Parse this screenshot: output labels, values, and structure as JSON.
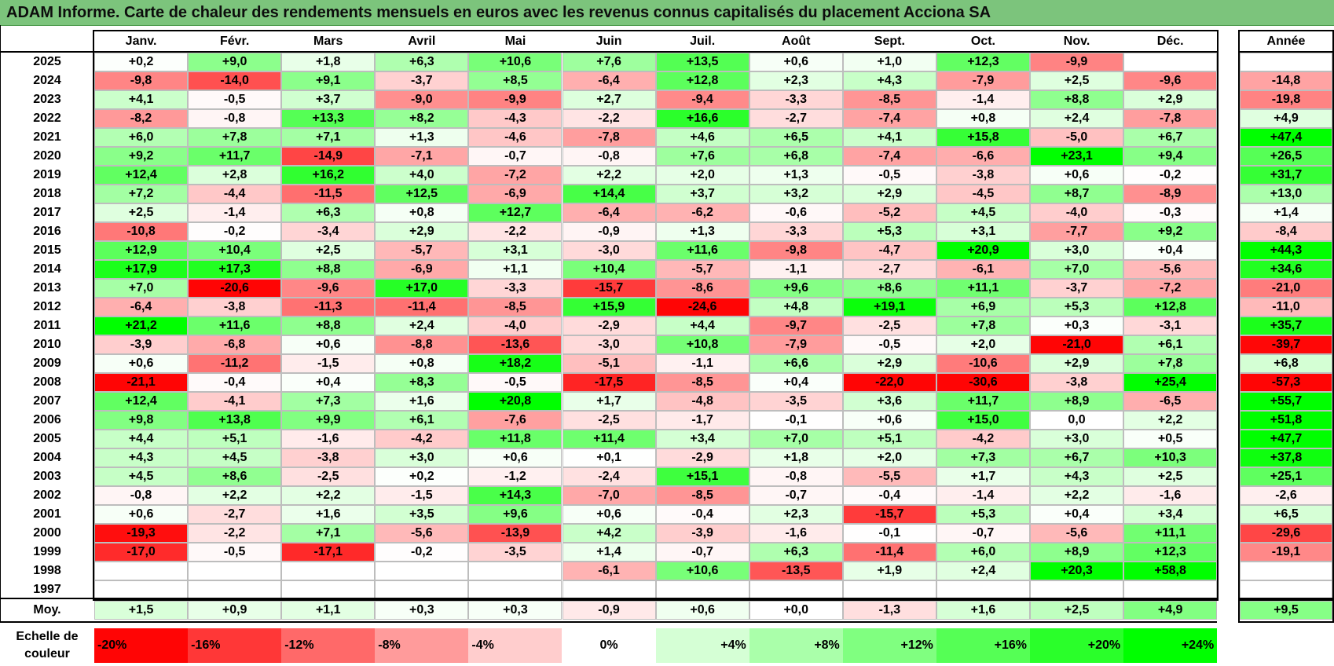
{
  "title": "ADAM Informe. Carte de chaleur des rendements mensuels en euros avec les revenus connus capitalisés du placement Acciona SA",
  "chart_data": {
    "type": "heatmap",
    "title": "ADAM Informe. Carte de chaleur des rendements mensuels en euros avec les revenus connus capitalisés du placement Acciona SA",
    "columns": [
      "Janv.",
      "Févr.",
      "Mars",
      "Avril",
      "Mai",
      "Juin",
      "Juil.",
      "Août",
      "Sept.",
      "Oct.",
      "Nov.",
      "Déc."
    ],
    "year_column_label": "Année",
    "rows": [
      {
        "year": "2025",
        "values": [
          "+0,2",
          "+9,0",
          "+1,8",
          "+6,3",
          "+10,6",
          "+7,6",
          "+13,5",
          "+0,6",
          "+1,0",
          "+12,3",
          "-9,9",
          ""
        ],
        "annual": ""
      },
      {
        "year": "2024",
        "values": [
          "-9,8",
          "-14,0",
          "+9,1",
          "-3,7",
          "+8,5",
          "-6,4",
          "+12,8",
          "+2,3",
          "+4,3",
          "-7,9",
          "+2,5",
          "-9,6"
        ],
        "annual": "-14,8"
      },
      {
        "year": "2023",
        "values": [
          "+4,1",
          "-0,5",
          "+3,7",
          "-9,0",
          "-9,9",
          "+2,7",
          "-9,4",
          "-3,3",
          "-8,5",
          "-1,4",
          "+8,8",
          "+2,9"
        ],
        "annual": "-19,8"
      },
      {
        "year": "2022",
        "values": [
          "-8,2",
          "-0,8",
          "+13,3",
          "+8,2",
          "-4,3",
          "-2,2",
          "+16,6",
          "-2,7",
          "-7,4",
          "+0,8",
          "+2,4",
          "-7,8"
        ],
        "annual": "+4,9"
      },
      {
        "year": "2021",
        "values": [
          "+6,0",
          "+7,8",
          "+7,1",
          "+1,3",
          "-4,6",
          "-7,8",
          "+4,6",
          "+6,5",
          "+4,1",
          "+15,8",
          "-5,0",
          "+6,7"
        ],
        "annual": "+47,4"
      },
      {
        "year": "2020",
        "values": [
          "+9,2",
          "+11,7",
          "-14,9",
          "-7,1",
          "-0,7",
          "-0,8",
          "+7,6",
          "+6,8",
          "-7,4",
          "-6,6",
          "+23,1",
          "+9,4"
        ],
        "annual": "+26,5"
      },
      {
        "year": "2019",
        "values": [
          "+12,4",
          "+2,8",
          "+16,2",
          "+4,0",
          "-7,2",
          "+2,2",
          "+2,0",
          "+1,3",
          "-0,5",
          "-3,8",
          "+0,6",
          "-0,2"
        ],
        "annual": "+31,7"
      },
      {
        "year": "2018",
        "values": [
          "+7,2",
          "-4,4",
          "-11,5",
          "+12,5",
          "-6,9",
          "+14,4",
          "+3,7",
          "+3,2",
          "+2,9",
          "-4,5",
          "+8,7",
          "-8,9"
        ],
        "annual": "+13,0"
      },
      {
        "year": "2017",
        "values": [
          "+2,5",
          "-1,4",
          "+6,3",
          "+0,8",
          "+12,7",
          "-6,4",
          "-6,2",
          "-0,6",
          "-5,2",
          "+4,5",
          "-4,0",
          "-0,3"
        ],
        "annual": "+1,4"
      },
      {
        "year": "2016",
        "values": [
          "-10,8",
          "-0,2",
          "-3,4",
          "+2,9",
          "-2,2",
          "-0,9",
          "+1,3",
          "-3,3",
          "+5,3",
          "+3,1",
          "-7,7",
          "+9,2"
        ],
        "annual": "-8,4"
      },
      {
        "year": "2015",
        "values": [
          "+12,9",
          "+10,4",
          "+2,5",
          "-5,7",
          "+3,1",
          "-3,0",
          "+11,6",
          "-9,8",
          "-4,7",
          "+20,9",
          "+3,0",
          "+0,4"
        ],
        "annual": "+44,3"
      },
      {
        "year": "2014",
        "values": [
          "+17,9",
          "+17,3",
          "+8,8",
          "-6,9",
          "+1,1",
          "+10,4",
          "-5,7",
          "-1,1",
          "-2,7",
          "-6,1",
          "+7,0",
          "-5,6"
        ],
        "annual": "+34,6"
      },
      {
        "year": "2013",
        "values": [
          "+7,0",
          "-20,6",
          "-9,6",
          "+17,0",
          "-3,3",
          "-15,7",
          "-8,6",
          "+9,6",
          "+8,6",
          "+11,1",
          "-3,7",
          "-7,2"
        ],
        "annual": "-21,0"
      },
      {
        "year": "2012",
        "values": [
          "-6,4",
          "-3,8",
          "-11,3",
          "-11,4",
          "-8,5",
          "+15,9",
          "-24,6",
          "+4,8",
          "+19,1",
          "+6,9",
          "+5,3",
          "+12,8"
        ],
        "annual": "-11,0"
      },
      {
        "year": "2011",
        "values": [
          "+21,2",
          "+11,6",
          "+8,8",
          "+2,4",
          "-4,0",
          "-2,9",
          "+4,4",
          "-9,7",
          "-2,5",
          "+7,8",
          "+0,3",
          "-3,1"
        ],
        "annual": "+35,7"
      },
      {
        "year": "2010",
        "values": [
          "-3,9",
          "-6,8",
          "+0,6",
          "-8,8",
          "-13,6",
          "-3,0",
          "+10,8",
          "-7,9",
          "-0,5",
          "+2,0",
          "-21,0",
          "+6,1"
        ],
        "annual": "-39,7"
      },
      {
        "year": "2009",
        "values": [
          "+0,6",
          "-11,2",
          "-1,5",
          "+0,8",
          "+18,2",
          "-5,1",
          "-1,1",
          "+6,6",
          "+2,9",
          "-10,6",
          "+2,9",
          "+7,8"
        ],
        "annual": "+6,8"
      },
      {
        "year": "2008",
        "values": [
          "-21,1",
          "-0,4",
          "+0,4",
          "+8,3",
          "-0,5",
          "-17,5",
          "-8,5",
          "+0,4",
          "-22,0",
          "-30,6",
          "-3,8",
          "+25,4"
        ],
        "annual": "-57,3"
      },
      {
        "year": "2007",
        "values": [
          "+12,4",
          "-4,1",
          "+7,3",
          "+1,6",
          "+20,8",
          "+1,7",
          "-4,8",
          "-3,5",
          "+3,6",
          "+11,7",
          "+8,9",
          "-6,5"
        ],
        "annual": "+55,7"
      },
      {
        "year": "2006",
        "values": [
          "+9,8",
          "+13,8",
          "+9,9",
          "+6,1",
          "-7,6",
          "-2,5",
          "-1,7",
          "-0,1",
          "+0,6",
          "+15,0",
          "0,0",
          "+2,2"
        ],
        "annual": "+51,8"
      },
      {
        "year": "2005",
        "values": [
          "+4,4",
          "+5,1",
          "-1,6",
          "-4,2",
          "+11,8",
          "+11,4",
          "+3,4",
          "+7,0",
          "+5,1",
          "-4,2",
          "+3,0",
          "+0,5"
        ],
        "annual": "+47,7"
      },
      {
        "year": "2004",
        "values": [
          "+4,3",
          "+4,5",
          "-3,8",
          "+3,0",
          "+0,6",
          "+0,1",
          "-2,9",
          "+1,8",
          "+2,0",
          "+7,3",
          "+6,7",
          "+10,3"
        ],
        "annual": "+37,8"
      },
      {
        "year": "2003",
        "values": [
          "+4,5",
          "+8,6",
          "-2,5",
          "+0,2",
          "-1,2",
          "-2,4",
          "+15,1",
          "-0,8",
          "-5,5",
          "+1,7",
          "+4,3",
          "+2,5"
        ],
        "annual": "+25,1"
      },
      {
        "year": "2002",
        "values": [
          "-0,8",
          "+2,2",
          "+2,2",
          "-1,5",
          "+14,3",
          "-7,0",
          "-8,5",
          "-0,7",
          "-0,4",
          "-1,4",
          "+2,2",
          "-1,6"
        ],
        "annual": "-2,6"
      },
      {
        "year": "2001",
        "values": [
          "+0,6",
          "-2,7",
          "+1,6",
          "+3,5",
          "+9,6",
          "+0,6",
          "-0,4",
          "+2,3",
          "-15,7",
          "+5,3",
          "+0,4",
          "+3,4"
        ],
        "annual": "+6,5"
      },
      {
        "year": "2000",
        "values": [
          "-19,3",
          "-2,2",
          "+7,1",
          "-5,6",
          "-13,9",
          "+4,2",
          "-3,9",
          "-1,6",
          "-0,1",
          "-0,7",
          "-5,6",
          "+11,1"
        ],
        "annual": "-29,6"
      },
      {
        "year": "1999",
        "values": [
          "-17,0",
          "-0,5",
          "-17,1",
          "-0,2",
          "-3,5",
          "+1,4",
          "-0,7",
          "+6,3",
          "-11,4",
          "+6,0",
          "+8,9",
          "+12,3"
        ],
        "annual": "-19,1"
      },
      {
        "year": "1998",
        "values": [
          "",
          "",
          "",
          "",
          "",
          "-6,1",
          "+10,6",
          "-13,5",
          "+1,9",
          "+2,4",
          "+20,3",
          "+58,8"
        ],
        "annual": ""
      },
      {
        "year": "1997",
        "values": [
          "",
          "",
          "",
          "",
          "",
          "",
          "",
          "",
          "",
          "",
          "",
          ""
        ],
        "annual": ""
      }
    ],
    "average": {
      "label": "Moy.",
      "values": [
        "+1,5",
        "+0,9",
        "+1,1",
        "+0,3",
        "+0,3",
        "-0,9",
        "+0,6",
        "+0,0",
        "-1,3",
        "+1,6",
        "+2,5",
        "+4,9"
      ],
      "annual": "+9,5"
    },
    "color_scale": {
      "label_line1": "Echelle de",
      "label_line2": "couleur",
      "steps": [
        "-20%",
        "-16%",
        "-12%",
        "-8%",
        "-4%",
        "0%",
        "+4%",
        "+8%",
        "+12%",
        "+16%",
        "+20%",
        "+24%"
      ]
    },
    "colors": {
      "negative_max": "#ff0000",
      "neutral": "#ffffff",
      "positive_max": "#00ff00",
      "title_bar": "#7cc47c"
    }
  }
}
